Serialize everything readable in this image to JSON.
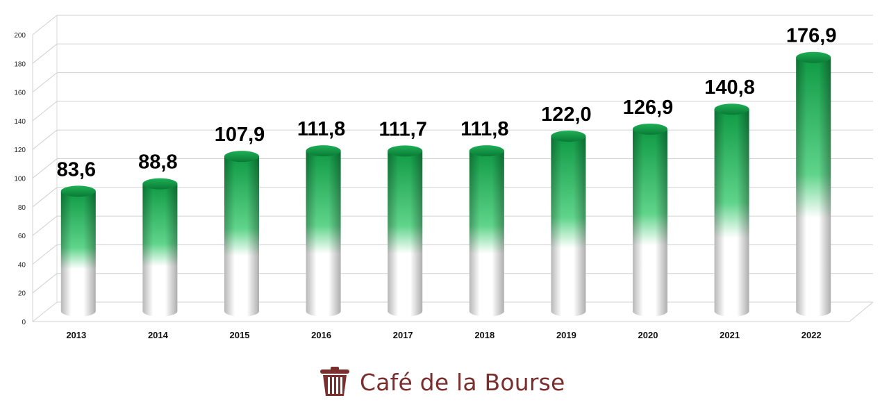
{
  "chart_data": {
    "type": "bar",
    "categories": [
      "2013",
      "2014",
      "2015",
      "2016",
      "2017",
      "2018",
      "2019",
      "2020",
      "2021",
      "2022"
    ],
    "values": [
      83.6,
      88.8,
      107.9,
      111.8,
      111.7,
      111.8,
      122.0,
      126.9,
      140.8,
      176.9
    ],
    "data_labels": [
      "83,6",
      "88,8",
      "107,9",
      "111,8",
      "111,7",
      "111,8",
      "122,0",
      "126,9",
      "140,8",
      "176,9"
    ],
    "yticks": [
      0,
      20,
      40,
      60,
      80,
      100,
      120,
      140,
      160,
      180,
      200
    ],
    "ylim": [
      0,
      200
    ],
    "grid": true,
    "legend": "none",
    "bar_top_color": "#0f9a45",
    "bar_bottom_color": "#ffffff"
  },
  "brand": {
    "name": "Café de la Bourse",
    "icon": "wastebasket-icon",
    "color": "#7a2e2e"
  }
}
